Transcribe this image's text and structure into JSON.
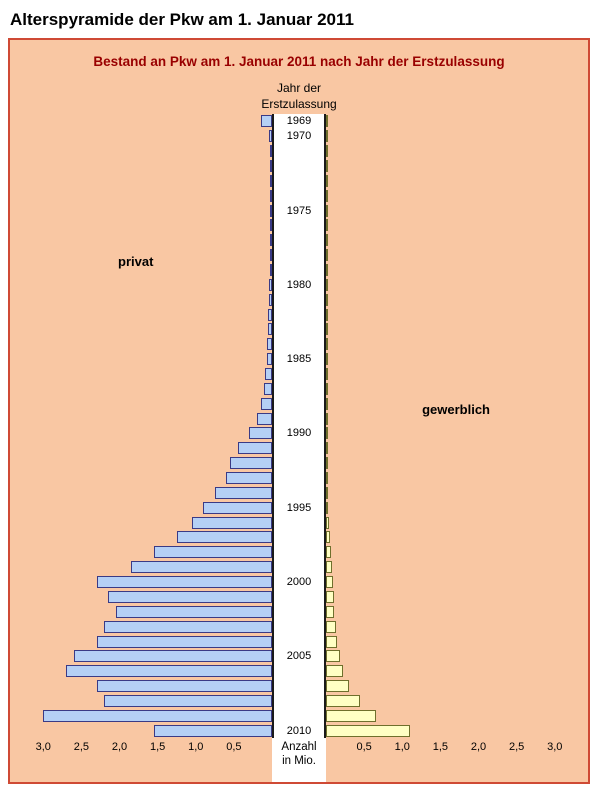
{
  "page": {
    "title": "Alterspyramide der Pkw am 1. Januar 2011"
  },
  "chart": {
    "title": "Bestand an Pkw am 1. Januar 2011 nach Jahr der Erstzulassung",
    "center_axis_title": [
      "Jahr der",
      "Erstzulassung"
    ],
    "bottom_axis_title": [
      "Anzahl",
      "in Mio."
    ],
    "left_label": "privat",
    "right_label": "gewerblich"
  },
  "colors": {
    "plot_background": "#f9c7a3",
    "plot_border": "#cf4a35",
    "title_text": "#990000",
    "bar_privat_fill": "#b5d0f5",
    "bar_privat_border": "#3a3a85",
    "bar_gewerblich_fill": "#ffffc4",
    "bar_gewerblich_border": "#6f6f2c",
    "center_column": "#ffffff"
  },
  "chart_data": {
    "type": "bar",
    "orientation": "horizontal-pyramid",
    "title": "Bestand an Pkw am 1. Januar 2011 nach Jahr der Erstzulassung",
    "xlabel": "Anzahl in Mio.",
    "ylabel": "Jahr der Erstzulassung",
    "xlim": [
      0,
      3.2
    ],
    "years": [
      1969,
      1970,
      1971,
      1972,
      1973,
      1974,
      1975,
      1976,
      1977,
      1978,
      1979,
      1980,
      1981,
      1982,
      1983,
      1984,
      1985,
      1986,
      1987,
      1988,
      1989,
      1990,
      1991,
      1992,
      1993,
      1994,
      1995,
      1996,
      1997,
      1998,
      1999,
      2000,
      2001,
      2002,
      2003,
      2004,
      2005,
      2006,
      2007,
      2008,
      2009,
      2010
    ],
    "labeled_years": [
      1969,
      1970,
      1975,
      1980,
      1985,
      1990,
      1995,
      2000,
      2005,
      2010
    ],
    "series": [
      {
        "name": "privat",
        "side": "left",
        "values": [
          0.15,
          0.04,
          0.03,
          0.03,
          0.02,
          0.02,
          0.02,
          0.02,
          0.02,
          0.03,
          0.03,
          0.04,
          0.04,
          0.05,
          0.05,
          0.06,
          0.07,
          0.09,
          0.11,
          0.14,
          0.2,
          0.3,
          0.45,
          0.55,
          0.6,
          0.75,
          0.9,
          1.05,
          1.25,
          1.55,
          1.85,
          2.3,
          2.15,
          2.05,
          2.2,
          2.3,
          2.6,
          2.7,
          2.3,
          2.2,
          3.0,
          1.55
        ]
      },
      {
        "name": "gewerblich",
        "side": "right",
        "values": [
          0.01,
          0.01,
          0.01,
          0.01,
          0.01,
          0.01,
          0.01,
          0.01,
          0.01,
          0.01,
          0.01,
          0.01,
          0.01,
          0.01,
          0.01,
          0.01,
          0.01,
          0.01,
          0.01,
          0.02,
          0.02,
          0.02,
          0.02,
          0.02,
          0.02,
          0.03,
          0.03,
          0.04,
          0.05,
          0.06,
          0.08,
          0.09,
          0.1,
          0.11,
          0.13,
          0.15,
          0.18,
          0.22,
          0.3,
          0.45,
          0.65,
          1.1
        ]
      }
    ],
    "x_axis": {
      "ticks": [
        0.5,
        1.0,
        1.5,
        2.0,
        2.5,
        3.0
      ],
      "tick_labels": [
        "0,5",
        "1,0",
        "1,5",
        "2,0",
        "2,5",
        "3,0"
      ]
    }
  }
}
